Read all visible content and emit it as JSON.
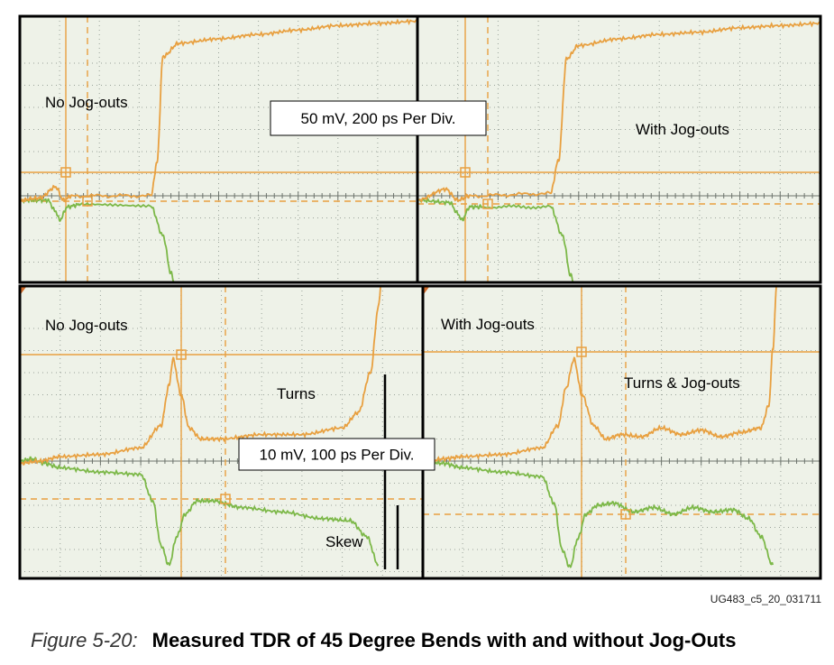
{
  "chart_data": {
    "type": "line",
    "title": "Measured TDR of 45 Degree Bends with and without Jog-Outs",
    "figure_number": "Figure 5-20:",
    "figure_id": "UG483_c5_20_031711",
    "scale_labels": {
      "top": "50 mV, 200 ps Per Div.",
      "bottom": "10 mV, 100 ps Per Div."
    },
    "colors": {
      "trace_p": "#e8a040",
      "trace_n": "#7cb848",
      "screen_bg": "#eef2e8",
      "grid": "#9aa39a",
      "cursor": "#e8a040",
      "frame": "#000000"
    },
    "panels": [
      {
        "id": "top-left",
        "annotations": [
          "No Jog-outs"
        ],
        "orange_trace": {
          "x": [
            0,
            0.5,
            0.9,
            1.1,
            1.3,
            3.3,
            3.45,
            3.6,
            4.0,
            5,
            6,
            7,
            8,
            9,
            10
          ],
          "y": [
            -0.2,
            -0.1,
            0.4,
            -0.2,
            0,
            0,
            1.5,
            6.3,
            6.9,
            7.1,
            7.3,
            7.5,
            7.7,
            7.8,
            7.9
          ]
        },
        "green_trace": {
          "x": [
            0,
            0.7,
            0.9,
            1.0,
            1.2,
            1.5,
            3.3,
            3.6,
            3.8,
            3.9
          ],
          "y": [
            -0.2,
            -0.2,
            -0.7,
            -1.1,
            -0.5,
            -0.4,
            -0.5,
            -1.8,
            -3.5,
            -4.0
          ]
        }
      },
      {
        "id": "top-right",
        "annotations": [
          "With Jog-outs"
        ],
        "orange_trace": {
          "x": [
            0,
            0.7,
            1.0,
            1.3,
            3.3,
            3.5,
            3.7,
            4.0,
            5,
            6,
            7,
            8,
            9,
            10
          ],
          "y": [
            -0.2,
            0.3,
            -0.2,
            0,
            0.1,
            1.6,
            6.2,
            6.8,
            7.1,
            7.3,
            7.4,
            7.6,
            7.7,
            7.8
          ]
        },
        "green_trace": {
          "x": [
            0,
            0.8,
            1.0,
            1.1,
            1.3,
            1.6,
            3.3,
            3.6,
            3.8,
            3.9
          ],
          "y": [
            -0.2,
            -0.3,
            -0.8,
            -1.1,
            -0.5,
            -0.5,
            -0.5,
            -1.8,
            -3.6,
            -4.0
          ]
        }
      },
      {
        "id": "bottom-left",
        "annotations": [
          "No Jog-outs",
          "Turns",
          "Skew"
        ],
        "orange_trace": {
          "x": [
            0,
            0.5,
            1,
            2,
            3,
            3.5,
            3.7,
            3.8,
            4.0,
            4.2,
            4.5,
            5,
            6,
            7,
            8,
            8.4,
            8.7,
            8.9,
            9.0
          ],
          "y": [
            -0.1,
            0,
            0.2,
            0.3,
            0.6,
            1.6,
            3.4,
            4.6,
            3.0,
            1.5,
            1.0,
            1.0,
            1.2,
            1.2,
            1.5,
            2.2,
            4.0,
            7.0,
            9.0
          ]
        },
        "green_trace": {
          "x": [
            0,
            0.3,
            0.6,
            1.0,
            2.0,
            3.0,
            3.3,
            3.5,
            3.7,
            3.9,
            4.1,
            4.4,
            4.8,
            5.5,
            6.5,
            7.5,
            8.2,
            8.6,
            8.9
          ],
          "y": [
            0,
            0.1,
            -0.1,
            -0.3,
            -0.5,
            -0.6,
            -1.8,
            -3.8,
            -4.7,
            -3.4,
            -2.4,
            -1.8,
            -1.8,
            -2.1,
            -2.3,
            -2.6,
            -2.7,
            -3.4,
            -4.7
          ]
        }
      },
      {
        "id": "bottom-right",
        "annotations": [
          "With Jog-outs",
          "Turns & Jog-outs"
        ],
        "orange_trace": {
          "x": [
            0,
            0.5,
            1,
            2,
            3,
            3.4,
            3.6,
            3.8,
            4.0,
            4.3,
            4.6,
            5,
            5.5,
            6,
            6.5,
            7,
            7.5,
            8,
            8.5,
            8.7,
            8.8,
            8.9,
            9.0
          ],
          "y": [
            -0.1,
            0.1,
            0.2,
            0.3,
            0.6,
            1.6,
            3.3,
            4.6,
            3.0,
            1.6,
            1.0,
            1.2,
            1.1,
            1.5,
            1.2,
            1.4,
            1.1,
            1.3,
            1.5,
            2.5,
            5.0,
            8.0,
            9.0
          ]
        },
        "green_trace": {
          "x": [
            0,
            0.5,
            1,
            2,
            3,
            3.3,
            3.5,
            3.7,
            3.9,
            4.1,
            4.4,
            4.8,
            5.3,
            5.8,
            6.3,
            6.8,
            7.3,
            7.8,
            8.2,
            8.5,
            8.8
          ],
          "y": [
            0,
            -0.1,
            -0.3,
            -0.5,
            -0.7,
            -1.9,
            -4.0,
            -4.8,
            -3.5,
            -2.4,
            -2.0,
            -1.9,
            -2.3,
            -2.1,
            -2.4,
            -2.1,
            -2.3,
            -2.2,
            -2.6,
            -3.4,
            -4.7
          ]
        }
      }
    ]
  }
}
